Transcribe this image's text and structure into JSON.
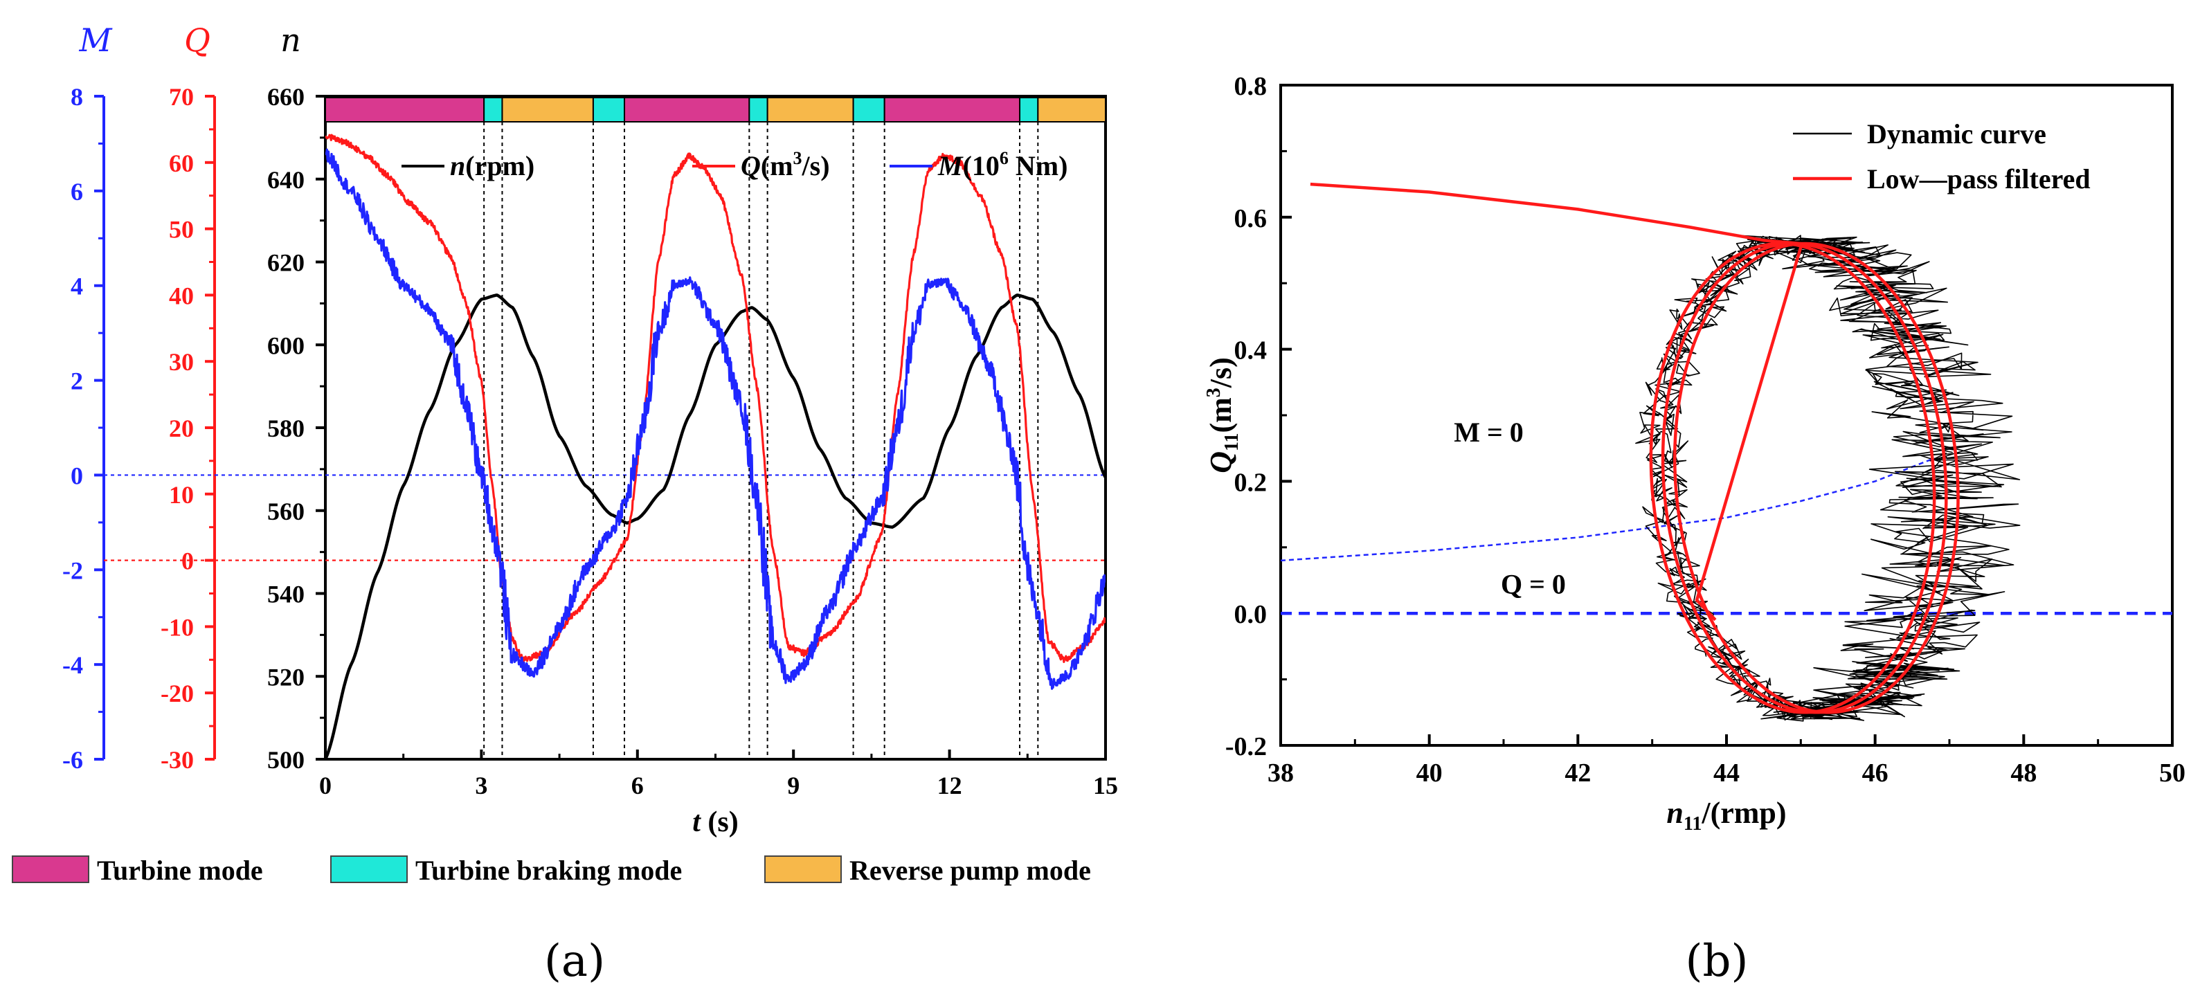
{
  "chart_data": [
    {
      "id": "a",
      "type": "line",
      "panel_label": "(a)",
      "xlabel_italic": "t",
      "xlabel_unit": " (s)",
      "xlim": [
        0,
        15
      ],
      "xticks": [
        "0",
        "3",
        "6",
        "9",
        "12",
        "15"
      ],
      "axes": {
        "M": {
          "title": "M",
          "color": "#1f26ff",
          "ylim": [
            -6,
            8
          ],
          "ticks": [
            "-6",
            "-4",
            "-2",
            "0",
            "2",
            "4",
            "6",
            "8"
          ]
        },
        "Q": {
          "title": "Q",
          "color": "#ff1a1a",
          "ylim": [
            -30,
            70
          ],
          "ticks": [
            "-30",
            "-20",
            "-10",
            "0",
            "10",
            "20",
            "30",
            "40",
            "50",
            "60",
            "70"
          ]
        },
        "n": {
          "title": "n",
          "color": "#000000",
          "ylim": [
            500,
            660
          ],
          "ticks": [
            "500",
            "520",
            "540",
            "560",
            "580",
            "600",
            "620",
            "640",
            "660"
          ]
        }
      },
      "legend": [
        {
          "key": "n",
          "sym": "n",
          "unit": "(rpm)",
          "color": "#000000"
        },
        {
          "key": "Q",
          "sym": "Q",
          "unit": "(m",
          "sup": "3",
          "unit2": "/s)",
          "color": "#ff1a1a"
        },
        {
          "key": "M",
          "sym": "M",
          "unit": "(10",
          "sup": "6",
          "unit2": " Nm)",
          "color": "#1f26ff"
        }
      ],
      "series": [
        {
          "name": "n(rpm)",
          "axis": "n",
          "color": "#000000",
          "x": [
            0,
            0.5,
            1,
            1.5,
            2,
            2.5,
            3,
            3.3,
            3.6,
            4,
            4.5,
            5,
            5.5,
            5.8,
            6,
            6.5,
            7,
            7.5,
            8,
            8.2,
            8.5,
            9,
            9.5,
            10,
            10.5,
            10.9,
            11.5,
            12,
            12.5,
            13,
            13.3,
            13.6,
            14,
            14.5,
            15
          ],
          "values": [
            500,
            523,
            545,
            566,
            584,
            600,
            611,
            612,
            609,
            597,
            578,
            566,
            559,
            557,
            558,
            565,
            583,
            600,
            608,
            609,
            606,
            592,
            575,
            563,
            557,
            556,
            563,
            580,
            597,
            609,
            612,
            611,
            603,
            588,
            568
          ]
        },
        {
          "name": "Q(m3/s)",
          "axis": "Q",
          "color": "#ff1a1a",
          "x": [
            0,
            0.4,
            0.8,
            1.2,
            1.6,
            2,
            2.4,
            2.7,
            3,
            3.2,
            3.4,
            3.6,
            3.8,
            4.2,
            4.8,
            5.3,
            5.8,
            6.1,
            6.4,
            6.7,
            7,
            7.3,
            7.6,
            8,
            8.3,
            8.6,
            8.9,
            9.2,
            9.7,
            10.2,
            10.7,
            11,
            11.3,
            11.6,
            11.9,
            12.2,
            12.6,
            13,
            13.3,
            13.6,
            13.9,
            14.2,
            14.6,
            15
          ],
          "values": [
            64,
            63,
            61,
            58,
            54,
            51,
            46,
            39,
            27,
            12,
            -3,
            -12,
            -15,
            -14,
            -8,
            -3,
            3,
            20,
            45,
            58,
            61,
            59,
            55,
            43,
            26,
            2,
            -13,
            -14,
            -11,
            -6,
            4,
            25,
            46,
            59,
            61,
            60,
            55,
            46,
            35,
            10,
            -12,
            -15,
            -13,
            -9
          ]
        },
        {
          "name": "M(10^6 Nm)",
          "axis": "M",
          "color": "#1f26ff",
          "x": [
            0,
            0.5,
            1,
            1.5,
            2,
            2.4,
            2.7,
            3,
            3.3,
            3.6,
            4,
            4.5,
            5,
            5.5,
            5.8,
            6.1,
            6.4,
            6.7,
            7,
            7.5,
            8,
            8.3,
            8.6,
            8.9,
            9.2,
            9.7,
            10.2,
            10.7,
            11,
            11.3,
            11.6,
            11.9,
            12.3,
            12.8,
            13.2,
            13.6,
            14,
            14.3,
            14.6,
            15
          ],
          "values": [
            6.8,
            6,
            5,
            4,
            3.5,
            2.8,
            1.5,
            0,
            -1.5,
            -3.8,
            -4.2,
            -3.2,
            -2,
            -1.2,
            -0.5,
            1,
            3,
            4,
            4.1,
            3.2,
            1.5,
            -0.5,
            -3.5,
            -4.3,
            -4,
            -2.8,
            -1.5,
            -0.5,
            1,
            3,
            4,
            4.1,
            3.5,
            2.2,
            0.5,
            -2.5,
            -4.4,
            -4.2,
            -3.5,
            -2.2
          ]
        }
      ],
      "reference_lines": [
        {
          "axis": "M",
          "value": 0,
          "color": "#1f26ff",
          "style": "dotted"
        },
        {
          "axis": "Q",
          "value": 0,
          "color": "#ff1a1a",
          "style": "dotted"
        }
      ],
      "mode_boundaries": [
        3.05,
        3.4,
        5.15,
        5.75,
        8.15,
        8.5,
        10.15,
        10.75,
        13.35,
        13.7
      ],
      "mode_bar": [
        {
          "mode": "turbine",
          "from": 0,
          "to": 3.05
        },
        {
          "mode": "braking",
          "from": 3.05,
          "to": 3.4
        },
        {
          "mode": "pump",
          "from": 3.4,
          "to": 5.15
        },
        {
          "mode": "braking",
          "from": 5.15,
          "to": 5.75
        },
        {
          "mode": "turbine",
          "from": 5.75,
          "to": 8.15
        },
        {
          "mode": "braking",
          "from": 8.15,
          "to": 8.5
        },
        {
          "mode": "pump",
          "from": 8.5,
          "to": 10.15
        },
        {
          "mode": "braking",
          "from": 10.15,
          "to": 10.75
        },
        {
          "mode": "turbine",
          "from": 10.75,
          "to": 13.35
        },
        {
          "mode": "braking",
          "from": 13.35,
          "to": 13.7
        },
        {
          "mode": "pump",
          "from": 13.7,
          "to": 15
        }
      ],
      "modes": [
        {
          "key": "turbine",
          "label": "Turbine mode",
          "color": "#d9398f"
        },
        {
          "key": "braking",
          "label": "Turbine braking mode",
          "color": "#1fe8d8"
        },
        {
          "key": "pump",
          "label": "Reverse pump mode",
          "color": "#f7b84a"
        }
      ]
    },
    {
      "id": "b",
      "type": "line",
      "panel_label": "(b)",
      "xlim": [
        38,
        50
      ],
      "ylim": [
        -0.2,
        0.8
      ],
      "xticks": [
        "38",
        "40",
        "42",
        "44",
        "46",
        "48",
        "50"
      ],
      "yticks": [
        "-0.2",
        "0.0",
        "0.2",
        "0.4",
        "0.6",
        "0.8"
      ],
      "xlabel_sym": "n",
      "xlabel_sub": "11",
      "xlabel_unit": "/(rmp)",
      "ylabel_sym": "Q",
      "ylabel_sub": "11",
      "ylabel_unit": "(m",
      "ylabel_sup": "3",
      "ylabel_unit2": "/s)",
      "legend": [
        {
          "label": "Dynamic curve",
          "color": "#000000"
        },
        {
          "label": "Low—pass filtered",
          "color": "#ff1a1a"
        }
      ],
      "annotations": [
        {
          "text": "M = 0",
          "x": 40.8,
          "y": 0.26
        },
        {
          "text": "Q = 0",
          "x": 41.4,
          "y": 0.03
        }
      ],
      "filtered_approach": {
        "x": [
          38.4,
          40,
          42,
          43.5,
          44.5,
          45
        ],
        "values": [
          0.65,
          0.638,
          0.612,
          0.585,
          0.565,
          0.56
        ]
      },
      "loop_center": [
        45.05,
        0.205
      ],
      "loop_radius": [
        1.9,
        0.355
      ],
      "loop_tilt_deg": -8,
      "filtered_end": {
        "x": 43.85,
        "y": -0.01
      },
      "m_zero_line": {
        "x": [
          38,
          40,
          42,
          43,
          44,
          45,
          46,
          46.8
        ],
        "values": [
          0.08,
          0.095,
          0.115,
          0.13,
          0.145,
          0.17,
          0.2,
          0.235
        ]
      },
      "q_zero_line": {
        "value": 0
      }
    }
  ]
}
